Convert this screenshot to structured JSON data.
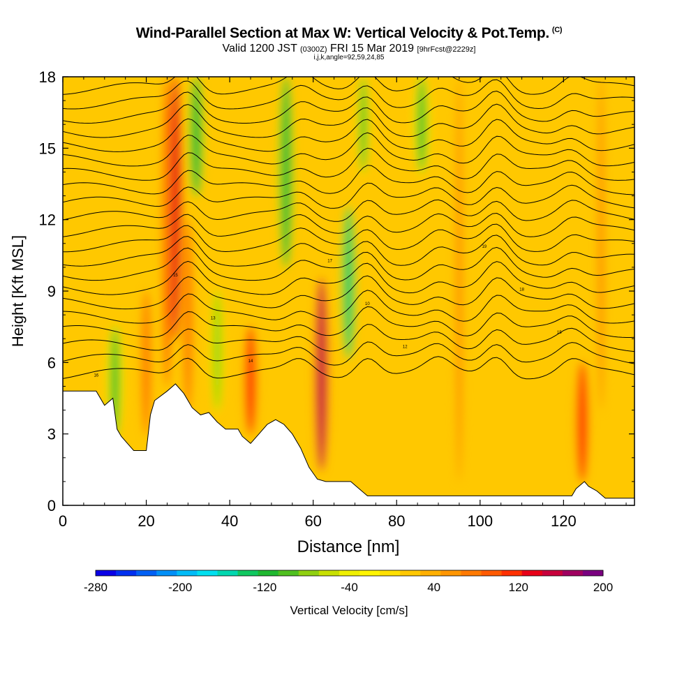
{
  "title": "Wind-Parallel Section at Max W: Vertical Velocity & Pot.Temp.",
  "title_mark": "(C)",
  "valid": {
    "prefix": "Valid 1200 JST",
    "utc": "(0300Z)",
    "date": "FRI 15 Mar 2019",
    "forecast": "[9hrFcst@2229z]"
  },
  "subtitle": "i,j,k,angle=92,59,24,85",
  "chart_data": {
    "type": "heatmap",
    "xlabel": "Distance [nm]",
    "ylabel": "Height [Kft MSL]",
    "xlim": [
      0,
      137
    ],
    "ylim": [
      0,
      18
    ],
    "x_ticks": [
      0,
      20,
      40,
      60,
      80,
      100,
      120
    ],
    "y_ticks": [
      0,
      3,
      6,
      9,
      12,
      15,
      18
    ],
    "grid": false,
    "colorbar": {
      "label": "Vertical Velocity [cm/s]",
      "min": -280,
      "max": 200,
      "step": 20,
      "tick_values": [
        -280,
        -200,
        -120,
        -40,
        40,
        120,
        200
      ],
      "colors": [
        "#0a00e6",
        "#0030f0",
        "#0060f5",
        "#0090f8",
        "#00bcf8",
        "#00e0f0",
        "#00d8b0",
        "#10c860",
        "#20b830",
        "#50c020",
        "#90d010",
        "#c8e000",
        "#f0f000",
        "#fff500",
        "#ffe000",
        "#ffc800",
        "#ffb000",
        "#ff9600",
        "#ff7a00",
        "#ff5a00",
        "#ff3000",
        "#e80018",
        "#c8003c",
        "#a00060",
        "#7a0080"
      ]
    },
    "terrain_kft": [
      [
        0,
        4.8
      ],
      [
        8,
        4.8
      ],
      [
        10,
        4.2
      ],
      [
        12,
        4.5
      ],
      [
        13,
        3.2
      ],
      [
        14,
        2.9
      ],
      [
        16,
        2.5
      ],
      [
        17,
        2.3
      ],
      [
        20,
        2.3
      ],
      [
        21,
        3.8
      ],
      [
        22,
        4.4
      ],
      [
        25,
        4.8
      ],
      [
        27,
        5.1
      ],
      [
        29,
        4.7
      ],
      [
        31,
        4.1
      ],
      [
        33,
        3.8
      ],
      [
        35,
        3.9
      ],
      [
        37,
        3.5
      ],
      [
        39,
        3.2
      ],
      [
        42,
        3.2
      ],
      [
        43,
        2.9
      ],
      [
        45,
        2.6
      ],
      [
        47,
        3.0
      ],
      [
        49,
        3.4
      ],
      [
        51,
        3.6
      ],
      [
        53,
        3.4
      ],
      [
        55,
        3.0
      ],
      [
        57,
        2.4
      ],
      [
        59,
        1.6
      ],
      [
        61,
        1.1
      ],
      [
        63,
        1.0
      ],
      [
        66,
        1.0
      ],
      [
        69,
        1.0
      ],
      [
        71,
        0.7
      ],
      [
        73,
        0.4
      ],
      [
        80,
        0.4
      ],
      [
        100,
        0.4
      ],
      [
        115,
        0.4
      ],
      [
        122,
        0.4
      ],
      [
        123,
        0.7
      ],
      [
        125,
        1.0
      ],
      [
        126,
        0.8
      ],
      [
        128,
        0.6
      ],
      [
        130,
        0.3
      ],
      [
        137,
        0.3
      ]
    ],
    "w_features": [
      {
        "x": 12.5,
        "bottom": 2.9,
        "top": 7.5,
        "value": -110
      },
      {
        "x": 20,
        "bottom": 3,
        "top": 9,
        "value": 70
      },
      {
        "x": 25,
        "bottom": 5,
        "top": 18,
        "value": 100
      },
      {
        "x": 27,
        "bottom": 7,
        "top": 18,
        "value": 130
      },
      {
        "x": 30,
        "bottom": 4,
        "top": 12,
        "value": 70
      },
      {
        "x": 32,
        "bottom": 13,
        "top": 18,
        "value": -130
      },
      {
        "x": 37,
        "bottom": 4,
        "top": 9,
        "value": -80
      },
      {
        "x": 45,
        "bottom": 3,
        "top": 7.5,
        "value": 110
      },
      {
        "x": 53.5,
        "bottom": 10,
        "top": 18,
        "value": -130
      },
      {
        "x": 62,
        "bottom": 1.5,
        "top": 9.5,
        "value": 150
      },
      {
        "x": 68.5,
        "bottom": 6.2,
        "top": 12.5,
        "value": -140
      },
      {
        "x": 72,
        "bottom": 14,
        "top": 18,
        "value": -100
      },
      {
        "x": 86,
        "bottom": 14,
        "top": 18,
        "value": -110
      },
      {
        "x": 95,
        "bottom": 1,
        "top": 18,
        "value": 60
      },
      {
        "x": 124.5,
        "bottom": 1,
        "top": 6,
        "value": 110
      },
      {
        "x": 129,
        "bottom": 4,
        "top": 18,
        "value": 60
      }
    ],
    "theta_contours": {
      "levels_min_kft": 5.5,
      "levels_max_kft": 18,
      "level_step_kft": 0.6,
      "wave_centers_nm": [
        30,
        57,
        73,
        90,
        104,
        122
      ],
      "labels": [
        "16",
        "14",
        "12",
        "15",
        "13",
        "10",
        "18",
        "15",
        "17",
        "19"
      ]
    }
  }
}
